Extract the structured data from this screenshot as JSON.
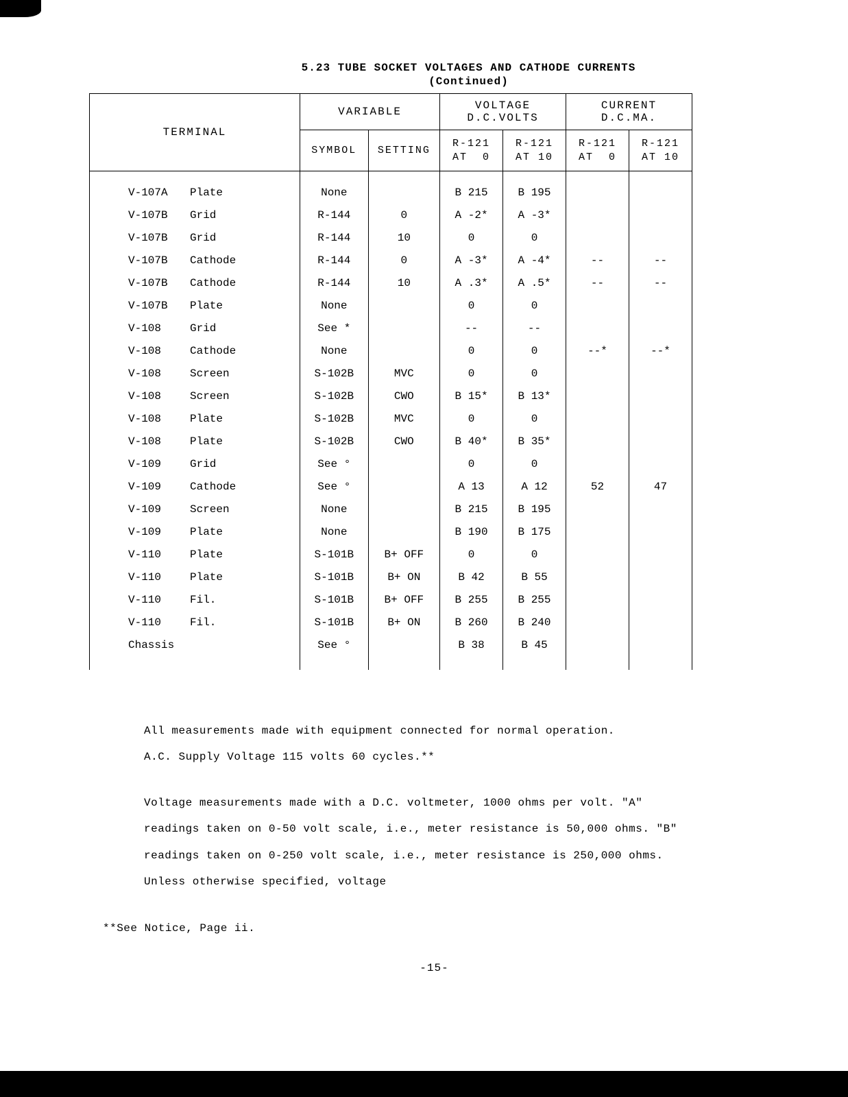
{
  "title": {
    "line1": "5.23 TUBE SOCKET VOLTAGES AND CATHODE CURRENTS",
    "line2": "(Continued)"
  },
  "header": {
    "terminal": "TERMINAL",
    "variable": "VARIABLE",
    "voltage": "VOLTAGE\nD.C.VOLTS",
    "current": "CURRENT\nD.C.MA.",
    "symbol": "SYMBOL",
    "setting": "SETTING",
    "r121_0": "R-121\nAT  0",
    "r121_10": "R-121\nAT 10",
    "r121_0b": "R-121\nAT  0",
    "r121_10b": "R-121\nAT 10"
  },
  "rows": [
    {
      "tube": "V-107A",
      "elem": "Plate",
      "sym": "None",
      "set": "",
      "v1": "B 215",
      "v2": "B 195",
      "c1": "",
      "c2": ""
    },
    {
      "tube": "V-107B",
      "elem": "Grid",
      "sym": "R-144",
      "set": "0",
      "v1": "A -2*",
      "v2": "A -3*",
      "c1": "",
      "c2": ""
    },
    {
      "tube": "V-107B",
      "elem": "Grid",
      "sym": "R-144",
      "set": "10",
      "v1": "0",
      "v2": "0",
      "c1": "",
      "c2": ""
    },
    {
      "tube": "V-107B",
      "elem": "Cathode",
      "sym": "R-144",
      "set": "0",
      "v1": "A -3*",
      "v2": "A -4*",
      "c1": "--",
      "c2": "--"
    },
    {
      "tube": "V-107B",
      "elem": "Cathode",
      "sym": "R-144",
      "set": "10",
      "v1": "A .3*",
      "v2": "A .5*",
      "c1": "--",
      "c2": "--"
    },
    {
      "tube": "V-107B",
      "elem": "Plate",
      "sym": "None",
      "set": "",
      "v1": "0",
      "v2": "0",
      "c1": "",
      "c2": ""
    },
    {
      "tube": "V-108",
      "elem": "Grid",
      "sym": "See *",
      "set": "",
      "v1": "--",
      "v2": "--",
      "c1": "",
      "c2": ""
    },
    {
      "tube": "V-108",
      "elem": "Cathode",
      "sym": "None",
      "set": "",
      "v1": "0",
      "v2": "0",
      "c1": "--*",
      "c2": "--*"
    },
    {
      "tube": "V-108",
      "elem": "Screen",
      "sym": "S-102B",
      "set": "MVC",
      "v1": "0",
      "v2": "0",
      "c1": "",
      "c2": ""
    },
    {
      "tube": "V-108",
      "elem": "Screen",
      "sym": "S-102B",
      "set": "CWO",
      "v1": "B 15*",
      "v2": "B 13*",
      "c1": "",
      "c2": ""
    },
    {
      "tube": "V-108",
      "elem": "Plate",
      "sym": "S-102B",
      "set": "MVC",
      "v1": "0",
      "v2": "0",
      "c1": "",
      "c2": ""
    },
    {
      "tube": "V-108",
      "elem": "Plate",
      "sym": "S-102B",
      "set": "CWO",
      "v1": "B 40*",
      "v2": "B 35*",
      "c1": "",
      "c2": ""
    },
    {
      "tube": "V-109",
      "elem": "Grid",
      "sym": "See °",
      "set": "",
      "v1": "0",
      "v2": "0",
      "c1": "",
      "c2": ""
    },
    {
      "tube": "V-109",
      "elem": "Cathode",
      "sym": "See °",
      "set": "",
      "v1": "A 13",
      "v2": "A 12",
      "c1": "52",
      "c2": "47"
    },
    {
      "tube": "V-109",
      "elem": "Screen",
      "sym": "None",
      "set": "",
      "v1": "B 215",
      "v2": "B 195",
      "c1": "",
      "c2": ""
    },
    {
      "tube": "V-109",
      "elem": "Plate",
      "sym": "None",
      "set": "",
      "v1": "B 190",
      "v2": "B 175",
      "c1": "",
      "c2": ""
    },
    {
      "tube": "V-110",
      "elem": "Plate",
      "sym": "S-101B",
      "set": "B+ OFF",
      "v1": "0",
      "v2": "0",
      "c1": "",
      "c2": ""
    },
    {
      "tube": "V-110",
      "elem": "Plate",
      "sym": "S-101B",
      "set": "B+ ON",
      "v1": "B 42",
      "v2": "B 55",
      "c1": "",
      "c2": ""
    },
    {
      "tube": "V-110",
      "elem": "Fil.",
      "sym": "S-101B",
      "set": "B+ OFF",
      "v1": "B 255",
      "v2": "B 255",
      "c1": "",
      "c2": ""
    },
    {
      "tube": "V-110",
      "elem": "Fil.",
      "sym": "S-101B",
      "set": "B+ ON",
      "v1": "B 260",
      "v2": "B 240",
      "c1": "",
      "c2": ""
    },
    {
      "tube": "Chassis",
      "elem": "",
      "sym": "See °",
      "set": "",
      "v1": "B  38",
      "v2": "B  45",
      "c1": "",
      "c2": ""
    }
  ],
  "notes": {
    "p1": "All measurements made with equipment connected for normal operation.",
    "p2": "A.C. Supply Voltage 115 volts 60 cycles.**",
    "p3": "Voltage measurements made with a D.C. voltmeter, 1000 ohms per volt. \"A\" readings taken on 0-50 volt scale, i.e., meter resistance is 50,000 ohms.  \"B\" readings taken on 0-250 volt scale, i.e., meter resistance is 250,000 ohms.    Unless otherwise specified, voltage"
  },
  "footnote": "**See Notice, Page ii.",
  "page_num": "-15-",
  "colors": {
    "bg": "#ffffff",
    "ink": "#000000",
    "border": "#000000"
  }
}
